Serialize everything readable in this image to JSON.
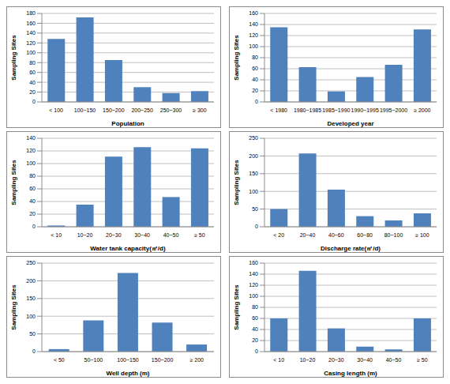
{
  "chart_data": [
    {
      "type": "bar",
      "x_label": "Population",
      "y_label": "Sampling Sites",
      "categories": [
        "< 100",
        "100~150",
        "150~200",
        "200~250",
        "250~300",
        "≥ 300"
      ],
      "values": [
        128,
        172,
        85,
        30,
        18,
        22
      ],
      "color": "#4f81bd",
      "ylim": [
        0,
        180
      ],
      "yticks": [
        0,
        20,
        40,
        60,
        80,
        100,
        120,
        140,
        160,
        180
      ],
      "grid": true
    },
    {
      "type": "bar",
      "x_label": "Developed year",
      "y_label": "Sampling Sites",
      "categories": [
        "< 1980",
        "1980~1985",
        "1985~1990",
        "1990~1995",
        "1995~2000",
        "≥ 2000"
      ],
      "values": [
        135,
        63,
        19,
        45,
        67,
        131
      ],
      "color": "#4f81bd",
      "ylim": [
        0,
        160
      ],
      "yticks": [
        0,
        20,
        40,
        60,
        80,
        100,
        120,
        140,
        160
      ],
      "grid": true
    },
    {
      "type": "bar",
      "x_label": "Water tank capacity(㎥/d)",
      "y_label": "Sampling Sites",
      "categories": [
        "< 10",
        "10~20",
        "20~30",
        "30~40",
        "40~50",
        "≥ 50"
      ],
      "values": [
        2,
        35,
        111,
        126,
        47,
        124
      ],
      "color": "#4f81bd",
      "ylim": [
        0,
        140
      ],
      "yticks": [
        0,
        20,
        40,
        60,
        80,
        100,
        120,
        140
      ],
      "grid": true
    },
    {
      "type": "bar",
      "x_label": "Discharge rate(㎥/d)",
      "y_label": "Sampling Sites",
      "categories": [
        "< 20",
        "20~40",
        "40~60",
        "60~80",
        "80~100",
        "≥ 100"
      ],
      "values": [
        50,
        207,
        105,
        30,
        18,
        38
      ],
      "color": "#4f81bd",
      "ylim": [
        0,
        250
      ],
      "yticks": [
        0,
        50,
        100,
        150,
        200,
        250
      ],
      "grid": true
    },
    {
      "type": "bar",
      "x_label": "Well depth (m)",
      "y_label": "Sampling Sites",
      "categories": [
        "< 50",
        "50~100",
        "100~150",
        "150~200",
        "≥ 200"
      ],
      "values": [
        7,
        88,
        222,
        82,
        20
      ],
      "color": "#4f81bd",
      "ylim": [
        0,
        250
      ],
      "yticks": [
        0,
        50,
        100,
        150,
        200,
        250
      ],
      "grid": true
    },
    {
      "type": "bar",
      "x_label": "Casing length (m)",
      "y_label": "Sampling Sites",
      "categories": [
        "< 10",
        "10~20",
        "20~30",
        "30~40",
        "40~50",
        "≥ 50"
      ],
      "values": [
        60,
        146,
        42,
        9,
        4,
        60
      ],
      "color": "#4f81bd",
      "ylim": [
        0,
        160
      ],
      "yticks": [
        0,
        20,
        40,
        60,
        80,
        100,
        120,
        140,
        160
      ],
      "grid": true
    }
  ]
}
